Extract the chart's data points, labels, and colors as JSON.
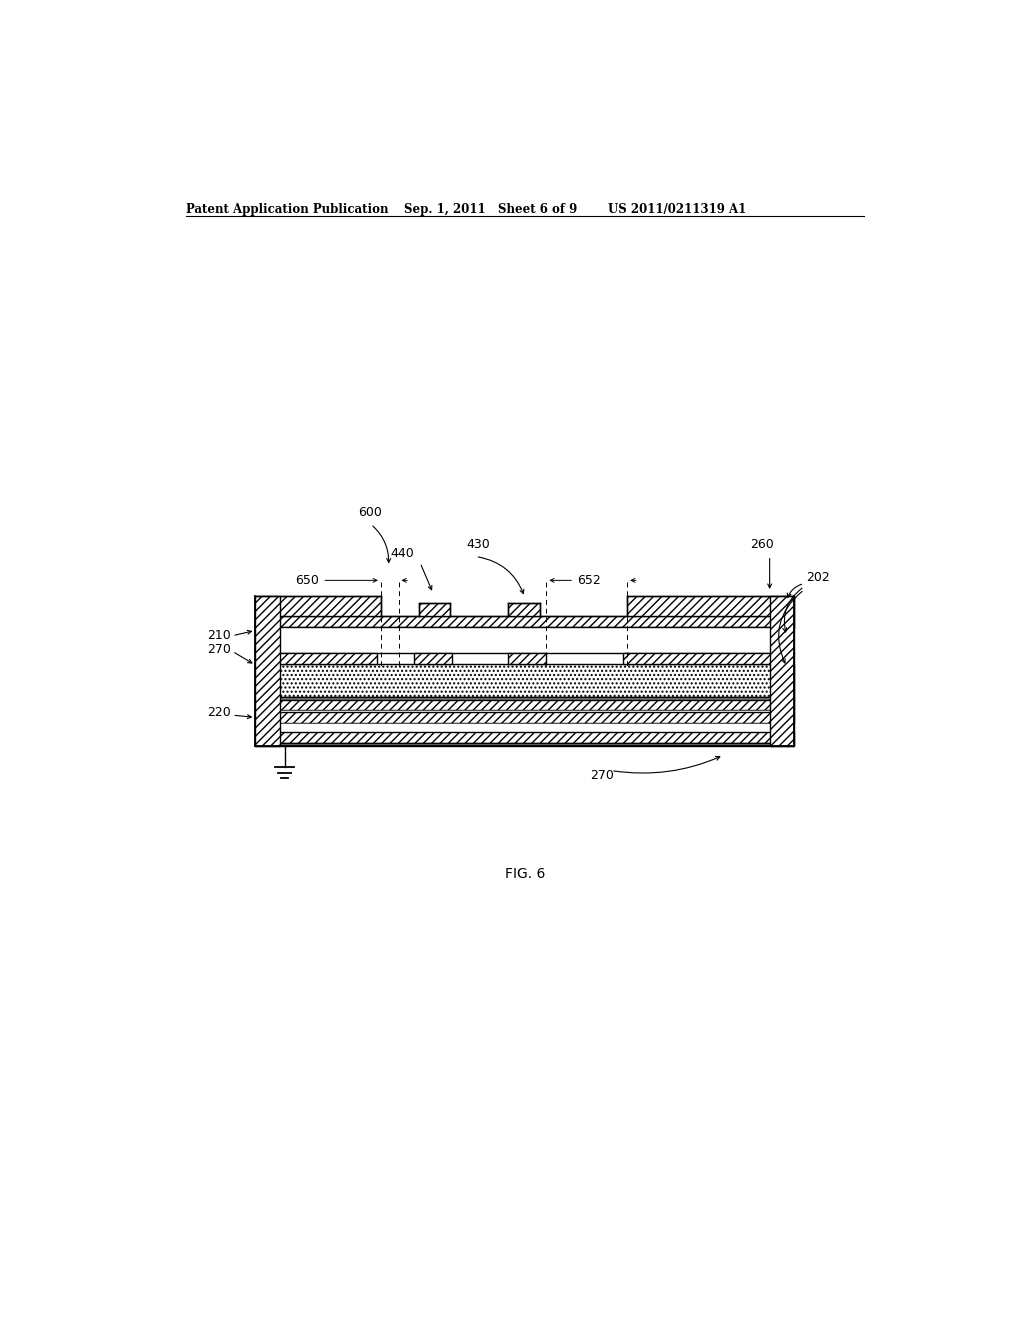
{
  "bg_color": "#ffffff",
  "header_left": "Patent Application Publication",
  "header_mid": "Sep. 1, 2011   Sheet 6 of 9",
  "header_right": "US 2011/0211319 A1",
  "fig_label": "FIG. 6",
  "label_600": "600",
  "label_650": "650",
  "label_652": "652",
  "label_440": "440",
  "label_430": "430",
  "label_260": "260",
  "label_202": "202",
  "label_210": "210",
  "label_270a": "270",
  "label_270b": "270",
  "label_220": "220",
  "line_color": "#000000"
}
